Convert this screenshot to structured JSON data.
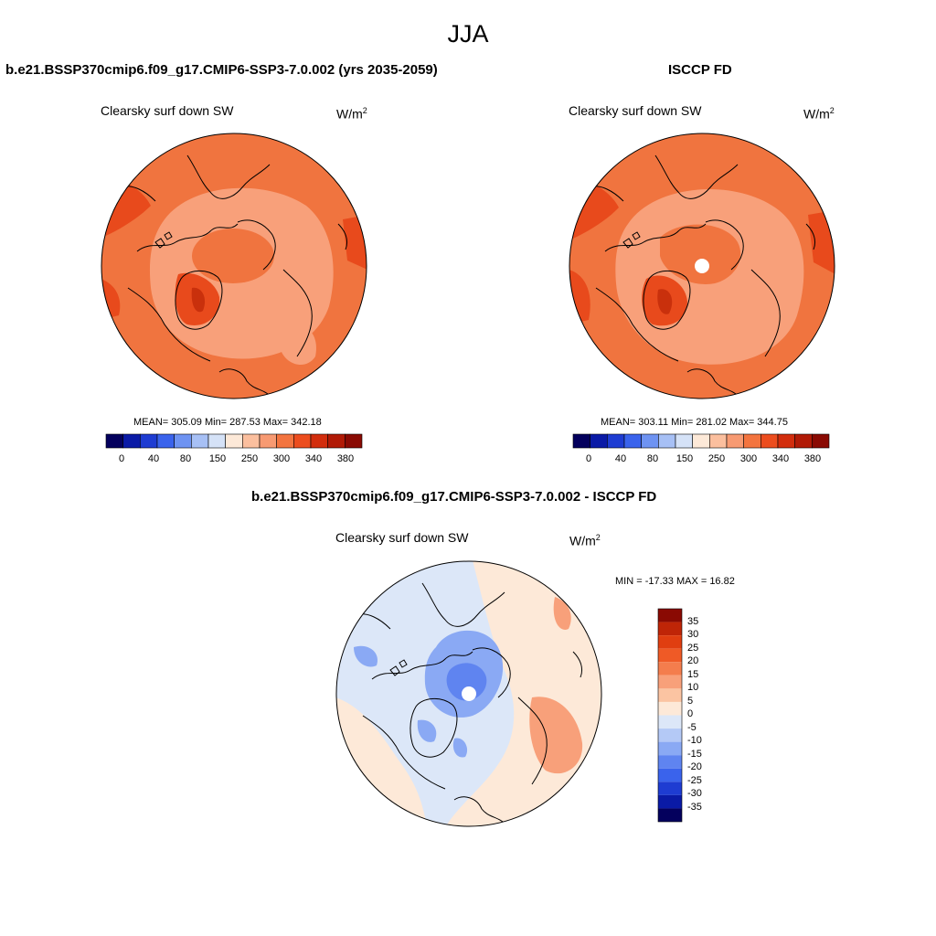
{
  "page_title": "JJA",
  "panels": {
    "model": {
      "title": "b.e21.BSSP370cmip6.f09_g17.CMIP6-SSP3-7.0.002 (yrs 2035-2059)",
      "variable": "Clearsky surf down SW",
      "units_base": "W/m",
      "units_exp": "2",
      "stats": "MEAN= 305.09  Min= 287.53  Max= 342.18"
    },
    "obs": {
      "title": "ISCCP FD",
      "variable": "Clearsky surf down SW",
      "units_base": "W/m",
      "units_exp": "2",
      "stats": "MEAN= 303.11  Min= 281.02  Max= 344.75"
    },
    "diff": {
      "title": "b.e21.BSSP370cmip6.f09_g17.CMIP6-SSP3-7.0.002 - ISCCP FD",
      "variable": "Clearsky surf down SW",
      "units_base": "W/m",
      "units_exp": "2",
      "stats": "MIN = -17.33 MAX =  16.82"
    }
  },
  "colorbar_abs": {
    "colors": [
      "#04005d",
      "#0a1aa6",
      "#1e3cd2",
      "#3a63ec",
      "#6e93f2",
      "#a7c0f5",
      "#d5e2f7",
      "#fde9d8",
      "#fbbf9e",
      "#f79a72",
      "#f3743f",
      "#ec4d1e",
      "#d22d0d",
      "#b11a06",
      "#8a0a03"
    ],
    "labels": [
      "0",
      "40",
      "80",
      "150",
      "250",
      "300",
      "340",
      "380"
    ]
  },
  "colorbar_diff": {
    "colors": [
      "#04005d",
      "#0a1aa6",
      "#1e3cd2",
      "#3a63ec",
      "#5f84f0",
      "#8aa9f4",
      "#b4c9f6",
      "#dce7f8",
      "#fde9d8",
      "#fbc4a2",
      "#f8a07a",
      "#f47d4d",
      "#ef5a26",
      "#e03e10",
      "#bf2507",
      "#8a0a03"
    ],
    "labels": [
      "35",
      "30",
      "25",
      "20",
      "15",
      "10",
      "5",
      "0",
      "-5",
      "-10",
      "-15",
      "-20",
      "-25",
      "-30",
      "-35"
    ]
  },
  "map_colors": {
    "abs_background": "#f0743f",
    "abs_mid": "#f8a07a",
    "abs_high": "#e84a1c",
    "abs_peak": "#c9300c",
    "diff_background": "#dce7f8",
    "diff_warm": "#fde9d8",
    "diff_cool": "#8aa9f4",
    "diff_cool_strong": "#5f84f0",
    "diff_warm_strong": "#f8a07a"
  }
}
